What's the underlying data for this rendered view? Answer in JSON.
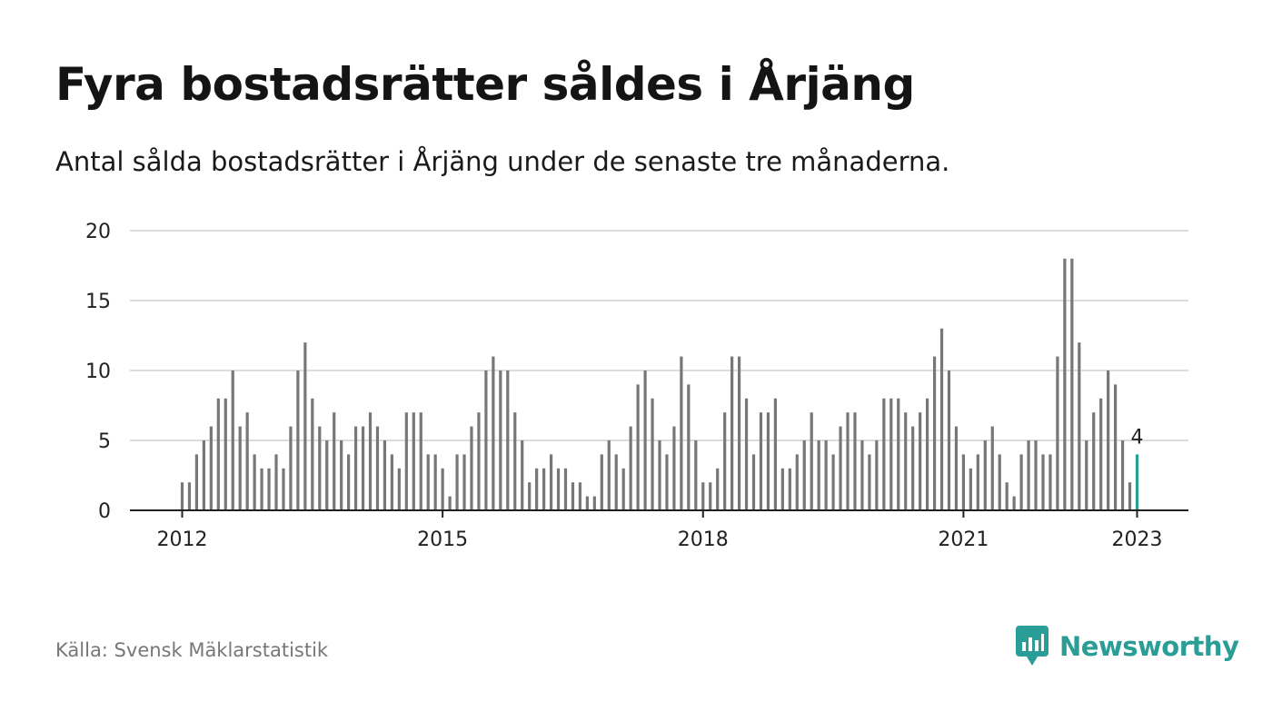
{
  "title": "Fyra bostadsrätter såldes i Årjäng",
  "subtitle": "Antal sålda bostadsrätter i Årjäng under de senaste tre månaderna.",
  "source": "Källa: Svensk Mäklarstatistik",
  "brand": {
    "name": "Newsworthy",
    "color": "#2a9d96"
  },
  "chart_data": {
    "type": "bar",
    "start": "2012-01",
    "xticks": [
      "2012",
      "2015",
      "2018",
      "2021",
      "2023"
    ],
    "yticks": [
      0,
      5,
      10,
      15,
      20
    ],
    "ylim": [
      0,
      20
    ],
    "grid": true,
    "bar_color": "#777777",
    "highlight_color": "#2a9d96",
    "highlight_label": "4",
    "values": [
      2,
      2,
      4,
      5,
      6,
      8,
      8,
      10,
      6,
      7,
      4,
      3,
      3,
      4,
      3,
      6,
      10,
      12,
      8,
      6,
      5,
      7,
      5,
      4,
      6,
      6,
      7,
      6,
      5,
      4,
      3,
      7,
      7,
      7,
      4,
      4,
      3,
      1,
      4,
      4,
      6,
      7,
      10,
      11,
      10,
      10,
      7,
      5,
      2,
      3,
      3,
      4,
      3,
      3,
      2,
      2,
      1,
      1,
      4,
      5,
      4,
      3,
      6,
      9,
      10,
      8,
      5,
      4,
      6,
      11,
      9,
      5,
      2,
      2,
      3,
      7,
      11,
      11,
      8,
      4,
      7,
      7,
      8,
      3,
      3,
      4,
      5,
      7,
      5,
      5,
      4,
      6,
      7,
      7,
      5,
      4,
      5,
      8,
      8,
      8,
      7,
      6,
      7,
      8,
      11,
      13,
      10,
      6,
      4,
      3,
      4,
      5,
      6,
      4,
      2,
      1,
      4,
      5,
      5,
      4,
      4,
      11,
      18,
      18,
      12,
      5,
      7,
      8,
      10,
      9,
      5,
      2,
      4
    ]
  }
}
